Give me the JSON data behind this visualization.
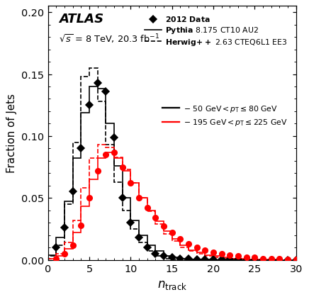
{
  "ylabel": "Fraction of Jets",
  "xlim": [
    0,
    30
  ],
  "ylim": [
    0,
    0.205
  ],
  "yticks": [
    0.0,
    0.05,
    0.1,
    0.15,
    0.2
  ],
  "xticks": [
    0,
    5,
    10,
    15,
    20,
    25,
    30
  ],
  "black_data_x": [
    1,
    2,
    3,
    4,
    5,
    6,
    7,
    8,
    9,
    10,
    11,
    12,
    13,
    14,
    15,
    16,
    17,
    18,
    19,
    20,
    21,
    22,
    23,
    24,
    25,
    26,
    27,
    28,
    29,
    30
  ],
  "black_data_y": [
    0.01,
    0.026,
    0.055,
    0.09,
    0.125,
    0.143,
    0.136,
    0.099,
    0.05,
    0.03,
    0.018,
    0.01,
    0.005,
    0.003,
    0.002,
    0.001,
    0.001,
    0.0005,
    0.0003,
    0.0002,
    0.0001,
    0.0001,
    0.0001,
    0.0,
    0.0,
    0.0,
    0.0,
    0.0,
    0.0,
    0.0
  ],
  "red_data_x": [
    1,
    2,
    3,
    4,
    5,
    6,
    7,
    8,
    9,
    10,
    11,
    12,
    13,
    14,
    15,
    16,
    17,
    18,
    19,
    20,
    21,
    22,
    23,
    24,
    25,
    26,
    27,
    28,
    29,
    30
  ],
  "red_data_y": [
    0.001,
    0.005,
    0.012,
    0.028,
    0.05,
    0.072,
    0.085,
    0.087,
    0.075,
    0.062,
    0.05,
    0.042,
    0.034,
    0.027,
    0.022,
    0.017,
    0.013,
    0.01,
    0.008,
    0.006,
    0.005,
    0.004,
    0.003,
    0.002,
    0.002,
    0.001,
    0.001,
    0.001,
    0.0005,
    0.0003
  ],
  "black_pythia_bins": [
    0,
    1,
    2,
    3,
    4,
    5,
    6,
    7,
    8,
    9,
    10,
    11,
    12,
    13,
    14,
    15,
    16,
    17,
    18,
    19,
    20,
    21,
    22,
    23,
    24,
    25,
    26,
    27,
    28,
    29,
    30
  ],
  "black_pythia_vals": [
    0.004,
    0.018,
    0.047,
    0.082,
    0.119,
    0.14,
    0.138,
    0.11,
    0.076,
    0.05,
    0.032,
    0.02,
    0.012,
    0.007,
    0.003,
    0.002,
    0.001,
    0.0005,
    0.0002,
    0.0001,
    0.0,
    0.0,
    0.0,
    0.0,
    0.0,
    0.0,
    0.0,
    0.0,
    0.0,
    0.0
  ],
  "black_herwig_bins": [
    0,
    1,
    2,
    3,
    4,
    5,
    6,
    7,
    8,
    9,
    10,
    11,
    12,
    13,
    14,
    15,
    16,
    17,
    18,
    19,
    20,
    21,
    22,
    23,
    24,
    25,
    26,
    27,
    28,
    29,
    30
  ],
  "black_herwig_vals": [
    0.003,
    0.012,
    0.045,
    0.095,
    0.148,
    0.155,
    0.128,
    0.093,
    0.063,
    0.04,
    0.025,
    0.014,
    0.007,
    0.003,
    0.001,
    0.0005,
    0.0002,
    0.0001,
    0.0,
    0.0,
    0.0,
    0.0,
    0.0,
    0.0,
    0.0,
    0.0,
    0.0,
    0.0,
    0.0,
    0.0
  ],
  "red_pythia_bins": [
    0,
    1,
    2,
    3,
    4,
    5,
    6,
    7,
    8,
    9,
    10,
    11,
    12,
    13,
    14,
    15,
    16,
    17,
    18,
    19,
    20,
    21,
    22,
    23,
    24,
    25,
    26,
    27,
    28,
    29,
    30
  ],
  "red_pythia_vals": [
    0.001,
    0.003,
    0.009,
    0.022,
    0.043,
    0.065,
    0.082,
    0.087,
    0.082,
    0.072,
    0.062,
    0.05,
    0.04,
    0.031,
    0.023,
    0.017,
    0.012,
    0.008,
    0.006,
    0.004,
    0.003,
    0.002,
    0.001,
    0.001,
    0.0005,
    0.0003,
    0.0002,
    0.0001,
    0.0,
    0.0
  ],
  "red_herwig_bins": [
    0,
    1,
    2,
    3,
    4,
    5,
    6,
    7,
    8,
    9,
    10,
    11,
    12,
    13,
    14,
    15,
    16,
    17,
    18,
    19,
    20,
    21,
    22,
    23,
    24,
    25,
    26,
    27,
    28,
    29,
    30
  ],
  "red_herwig_vals": [
    0.001,
    0.005,
    0.014,
    0.032,
    0.058,
    0.082,
    0.093,
    0.091,
    0.083,
    0.073,
    0.062,
    0.05,
    0.039,
    0.029,
    0.021,
    0.015,
    0.01,
    0.007,
    0.005,
    0.003,
    0.002,
    0.001,
    0.001,
    0.0005,
    0.0003,
    0.0001,
    0.0,
    0.0,
    0.0,
    0.0
  ]
}
